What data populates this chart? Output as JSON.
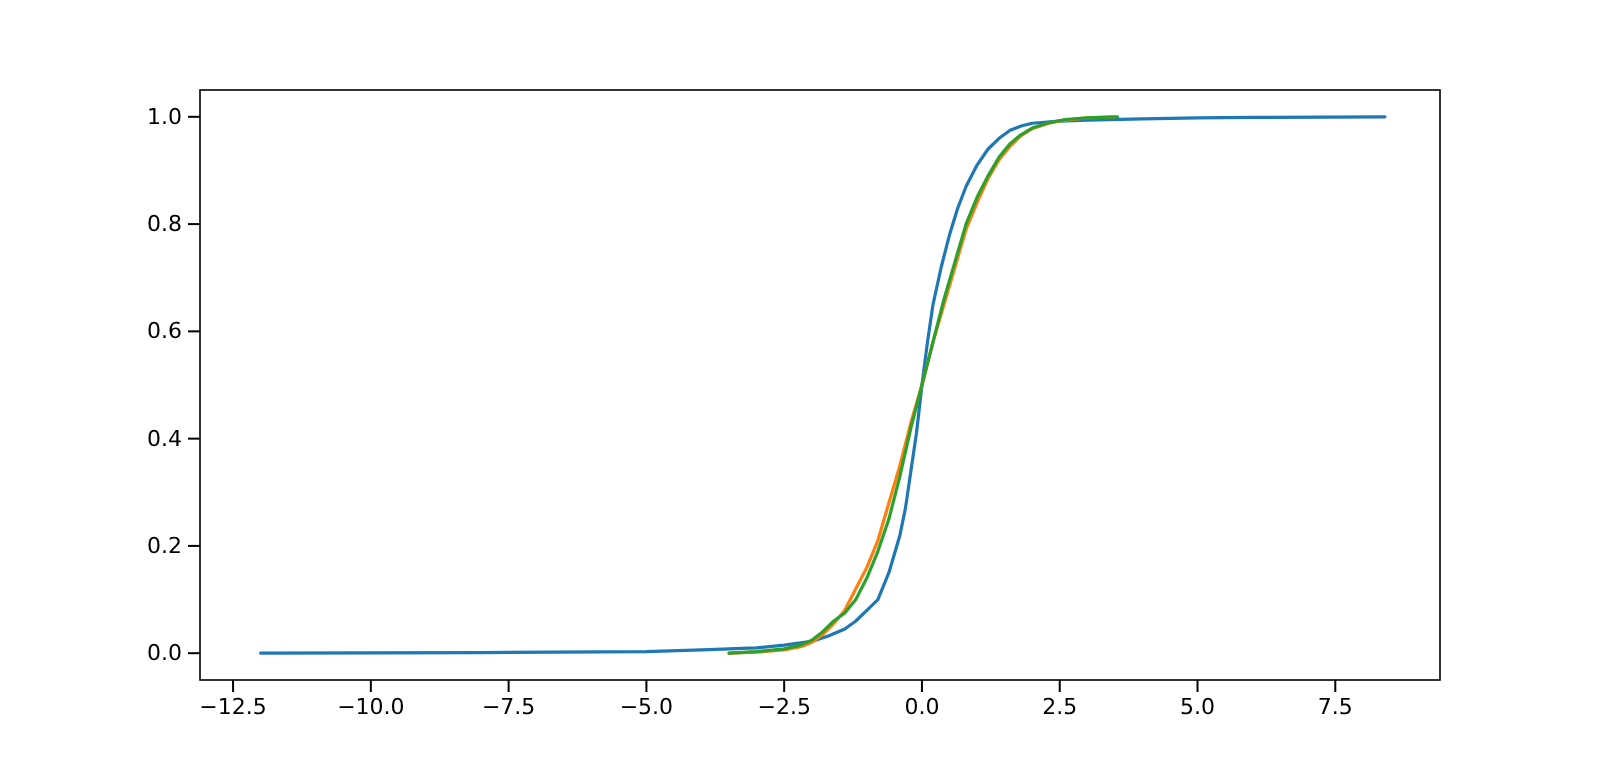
{
  "chart_data": {
    "type": "line",
    "xlim": [
      -13.1,
      9.4
    ],
    "ylim": [
      -0.05,
      1.05
    ],
    "xticks": [
      {
        "value": -12.5,
        "label": "−12.5"
      },
      {
        "value": -10,
        "label": "−10.0"
      },
      {
        "value": -7.5,
        "label": "−7.5"
      },
      {
        "value": -5,
        "label": "−5.0"
      },
      {
        "value": -2.5,
        "label": "−2.5"
      },
      {
        "value": 0,
        "label": "0.0"
      },
      {
        "value": 2.5,
        "label": "2.5"
      },
      {
        "value": 5,
        "label": "5.0"
      },
      {
        "value": 7.5,
        "label": "7.5"
      }
    ],
    "yticks": [
      {
        "value": 0,
        "label": "0.0"
      },
      {
        "value": 0.2,
        "label": "0.2"
      },
      {
        "value": 0.4,
        "label": "0.4"
      },
      {
        "value": 0.6,
        "label": "0.6"
      },
      {
        "value": 0.8,
        "label": "0.8"
      },
      {
        "value": 1,
        "label": "1.0"
      }
    ],
    "grid": false,
    "series": [
      {
        "color": "#1f77b4",
        "x": [
          -12,
          -8,
          -5,
          -4,
          -3,
          -2.5,
          -2,
          -1.7,
          -1.4,
          -1.2,
          -1,
          -0.8,
          -0.6,
          -0.4,
          -0.3,
          -0.2,
          -0.1,
          0,
          0.1,
          0.2,
          0.35,
          0.5,
          0.65,
          0.8,
          1,
          1.2,
          1.4,
          1.6,
          1.8,
          2,
          2.5,
          3,
          4,
          5,
          6,
          8.4
        ],
        "values": [
          0,
          0.001,
          0.003,
          0.006,
          0.01,
          0.015,
          0.022,
          0.032,
          0.045,
          0.06,
          0.08,
          0.1,
          0.15,
          0.22,
          0.27,
          0.34,
          0.41,
          0.5,
          0.58,
          0.65,
          0.72,
          0.78,
          0.83,
          0.87,
          0.91,
          0.94,
          0.96,
          0.975,
          0.983,
          0.988,
          0.992,
          0.994,
          0.996,
          0.998,
          0.999,
          1
        ]
      },
      {
        "color": "#ff7f0e",
        "x": [
          -3.5,
          -3,
          -2.5,
          -2.2,
          -2,
          -1.8,
          -1.6,
          -1.4,
          -1.2,
          -1,
          -0.8,
          -0.6,
          -0.4,
          -0.2,
          0,
          0.2,
          0.4,
          0.6,
          0.8,
          1,
          1.2,
          1.4,
          1.6,
          1.8,
          2,
          2.3,
          2.6,
          3,
          3.5
        ],
        "values": [
          0,
          0.002,
          0.006,
          0.012,
          0.02,
          0.035,
          0.055,
          0.08,
          0.12,
          0.16,
          0.21,
          0.28,
          0.35,
          0.43,
          0.5,
          0.58,
          0.65,
          0.72,
          0.79,
          0.84,
          0.885,
          0.92,
          0.945,
          0.965,
          0.978,
          0.988,
          0.994,
          0.998,
          1
        ]
      },
      {
        "color": "#2ca02c",
        "x": [
          -3.5,
          -3,
          -2.5,
          -2.2,
          -2,
          -1.8,
          -1.6,
          -1.4,
          -1.2,
          -1,
          -0.8,
          -0.6,
          -0.4,
          -0.2,
          0,
          0.2,
          0.4,
          0.6,
          0.8,
          1,
          1.2,
          1.4,
          1.6,
          1.8,
          2,
          2.3,
          2.6,
          3,
          3.55
        ],
        "values": [
          0,
          0.003,
          0.008,
          0.015,
          0.024,
          0.04,
          0.06,
          0.075,
          0.1,
          0.14,
          0.19,
          0.25,
          0.33,
          0.42,
          0.5,
          0.58,
          0.66,
          0.73,
          0.8,
          0.85,
          0.89,
          0.925,
          0.95,
          0.967,
          0.979,
          0.989,
          0.995,
          0.998,
          1
        ]
      }
    ]
  }
}
